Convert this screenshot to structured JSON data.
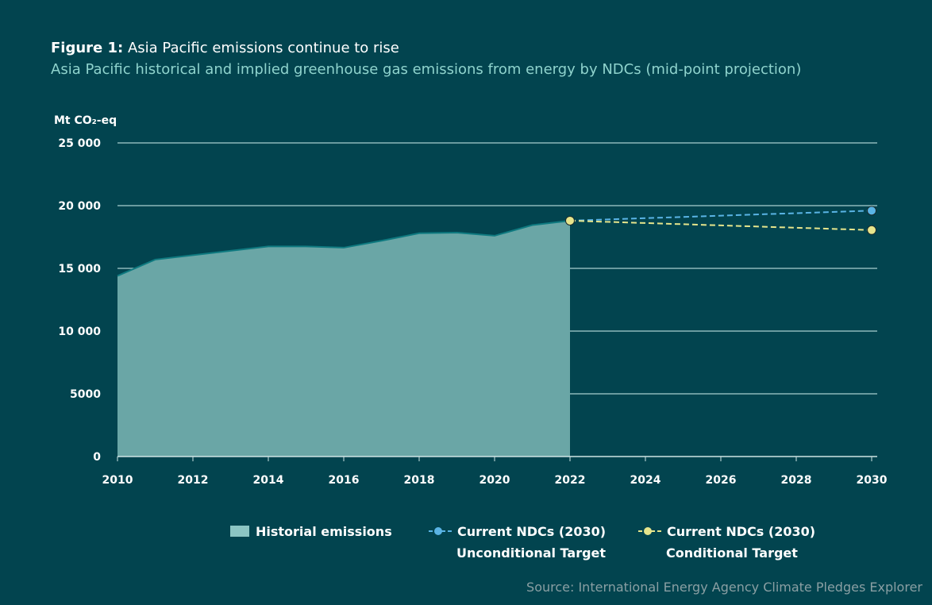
{
  "title_prefix": "Figure 1:",
  "title": "Asia Pacific emissions continue to rise",
  "subtitle": "Asia Pacific historical and implied greenhouse gas emissions from energy by NDCs (mid-point projection)",
  "source": "Source: International Energy Agency Climate Pledges Explorer",
  "chart_data": {
    "type": "area",
    "ylabel": "Mt CO₂-eq",
    "ylim": [
      0,
      25000
    ],
    "xlim": [
      2010,
      2030
    ],
    "yticks": [
      0,
      5000,
      10000,
      15000,
      20000,
      25000
    ],
    "ytick_labels": [
      "0",
      "5000",
      "10 000",
      "15 000",
      "20 000",
      "25 000"
    ],
    "xticks": [
      "2010",
      "2012",
      "2014",
      "2016",
      "2018",
      "2020",
      "2022",
      "2024",
      "2026",
      "2028",
      "2030"
    ],
    "grid": true,
    "legend_position": "bottom",
    "series": [
      {
        "name": "Historial emissions",
        "kind": "area",
        "color": "#6aa6a6",
        "x": [
          2010,
          2011,
          2012,
          2013,
          2014,
          2015,
          2016,
          2017,
          2018,
          2019,
          2020,
          2021,
          2022
        ],
        "values": [
          14400,
          15700,
          16050,
          16400,
          16750,
          16750,
          16650,
          17200,
          17800,
          17850,
          17600,
          18450,
          18800
        ]
      },
      {
        "name": "Current NDCs (2030) Unconditional Target",
        "kind": "dashed",
        "color": "#5ab4e5",
        "x": [
          2022,
          2030
        ],
        "values": [
          18800,
          19600
        ]
      },
      {
        "name": "Current NDCs (2030) Conditional Target",
        "kind": "dashed",
        "color": "#e6e58c",
        "x": [
          2022,
          2030
        ],
        "values": [
          18800,
          18050
        ]
      }
    ]
  },
  "legend": [
    {
      "line1": "Historial emissions",
      "line2": ""
    },
    {
      "line1": "Current NDCs (2030)",
      "line2": "Unconditional Target"
    },
    {
      "line1": "Current NDCs (2030)",
      "line2": "Conditional Target"
    }
  ]
}
